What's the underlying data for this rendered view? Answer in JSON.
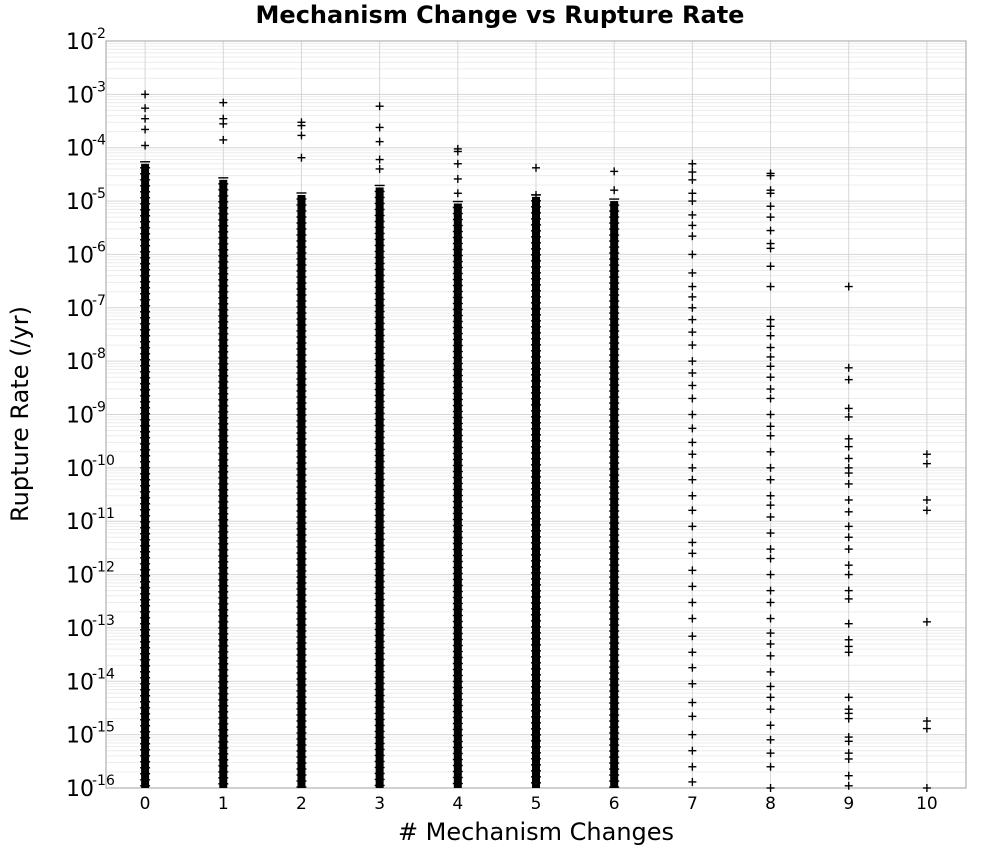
{
  "chart_data": {
    "type": "scatter",
    "title": "Mechanism Change vs Rupture Rate",
    "xlabel": "# Mechanism Changes",
    "ylabel": "Rupture Rate (/yr)",
    "xlim": [
      -0.5,
      10.5
    ],
    "ylim": [
      1e-16,
      0.01
    ],
    "yscale": "log",
    "grid": true,
    "marker": "+",
    "marker_color": "#000000",
    "x_ticks": [
      0,
      1,
      2,
      3,
      4,
      5,
      6,
      7,
      8,
      9,
      10
    ],
    "y_tick_base": "10",
    "y_tick_exponents": [
      "-16",
      "-15",
      "-14",
      "-13",
      "-12",
      "-11",
      "-10",
      "-9",
      "-8",
      "-7",
      "-6",
      "-5",
      "-4",
      "-3",
      "-2"
    ],
    "series": [
      {
        "points": [
          {
            "x": 0,
            "y": 0.001
          },
          {
            "x": 0,
            "y": 0.00055
          },
          {
            "x": 0,
            "y": 0.00035
          },
          {
            "x": 0,
            "y": 0.00022
          },
          {
            "x": 0,
            "y": 0.00011
          },
          {
            "x": 1,
            "y": 0.0007
          },
          {
            "x": 1,
            "y": 0.00035
          },
          {
            "x": 1,
            "y": 0.00028
          },
          {
            "x": 1,
            "y": 0.00014
          },
          {
            "x": 2,
            "y": 0.0003
          },
          {
            "x": 2,
            "y": 0.00026
          },
          {
            "x": 2,
            "y": 0.00017
          },
          {
            "x": 2,
            "y": 6.5e-05
          },
          {
            "x": 3,
            "y": 0.0006
          },
          {
            "x": 3,
            "y": 0.00024
          },
          {
            "x": 3,
            "y": 0.00013
          },
          {
            "x": 3,
            "y": 6e-05
          },
          {
            "x": 3,
            "y": 4e-05
          },
          {
            "x": 4,
            "y": 9.5e-05
          },
          {
            "x": 4,
            "y": 8.5e-05
          },
          {
            "x": 4,
            "y": 5e-05
          },
          {
            "x": 4,
            "y": 2.6e-05
          },
          {
            "x": 4,
            "y": 1.4e-05
          },
          {
            "x": 5,
            "y": 4.2e-05
          },
          {
            "x": 5,
            "y": 1.3e-05
          },
          {
            "x": 6,
            "y": 3.6e-05
          },
          {
            "x": 6,
            "y": 1.6e-05
          },
          {
            "x": 6,
            "y": 8e-06
          },
          {
            "x": 7,
            "y": 5e-05
          },
          {
            "x": 7,
            "y": 3.5e-05
          },
          {
            "x": 7,
            "y": 2.5e-05
          },
          {
            "x": 7,
            "y": 1.4e-05
          },
          {
            "x": 7,
            "y": 1e-05
          },
          {
            "x": 7,
            "y": 5.5e-06
          },
          {
            "x": 7,
            "y": 3.5e-06
          },
          {
            "x": 7,
            "y": 2.2e-06
          },
          {
            "x": 7,
            "y": 1e-06
          },
          {
            "x": 7,
            "y": 4.5e-07
          },
          {
            "x": 7,
            "y": 2.5e-07
          },
          {
            "x": 7,
            "y": 1.6e-07
          },
          {
            "x": 7,
            "y": 1e-07
          },
          {
            "x": 7,
            "y": 6e-08
          },
          {
            "x": 7,
            "y": 3.5e-08
          },
          {
            "x": 7,
            "y": 2e-08
          },
          {
            "x": 7,
            "y": 1e-08
          },
          {
            "x": 7,
            "y": 6e-09
          },
          {
            "x": 7,
            "y": 3.5e-09
          },
          {
            "x": 7,
            "y": 2e-09
          },
          {
            "x": 7,
            "y": 1e-09
          },
          {
            "x": 7,
            "y": 5.5e-10
          },
          {
            "x": 7,
            "y": 3e-10
          },
          {
            "x": 7,
            "y": 1.8e-10
          },
          {
            "x": 7,
            "y": 1e-10
          },
          {
            "x": 7,
            "y": 6e-11
          },
          {
            "x": 7,
            "y": 3e-11
          },
          {
            "x": 7,
            "y": 1.6e-11
          },
          {
            "x": 7,
            "y": 8e-12
          },
          {
            "x": 7,
            "y": 4e-12
          },
          {
            "x": 7,
            "y": 2.5e-12
          },
          {
            "x": 7,
            "y": 1.2e-12
          },
          {
            "x": 7,
            "y": 6e-13
          },
          {
            "x": 7,
            "y": 3e-13
          },
          {
            "x": 7,
            "y": 1.5e-13
          },
          {
            "x": 7,
            "y": 7e-14
          },
          {
            "x": 7,
            "y": 3.5e-14
          },
          {
            "x": 7,
            "y": 1.8e-14
          },
          {
            "x": 7,
            "y": 9e-15
          },
          {
            "x": 7,
            "y": 4e-15
          },
          {
            "x": 7,
            "y": 2.2e-15
          },
          {
            "x": 7,
            "y": 1e-15
          },
          {
            "x": 7,
            "y": 5e-16
          },
          {
            "x": 7,
            "y": 2.5e-16
          },
          {
            "x": 7,
            "y": 1.3e-16
          },
          {
            "x": 8,
            "y": 3.3e-05
          },
          {
            "x": 8,
            "y": 3e-05
          },
          {
            "x": 8,
            "y": 1.6e-05
          },
          {
            "x": 8,
            "y": 1.4e-05
          },
          {
            "x": 8,
            "y": 8e-06
          },
          {
            "x": 8,
            "y": 5e-06
          },
          {
            "x": 8,
            "y": 2.8e-06
          },
          {
            "x": 8,
            "y": 1.6e-06
          },
          {
            "x": 8,
            "y": 1.3e-06
          },
          {
            "x": 8,
            "y": 6e-07
          },
          {
            "x": 8,
            "y": 2.5e-07
          },
          {
            "x": 8,
            "y": 6e-08
          },
          {
            "x": 8,
            "y": 4.5e-08
          },
          {
            "x": 8,
            "y": 3e-08
          },
          {
            "x": 8,
            "y": 1.8e-08
          },
          {
            "x": 8,
            "y": 1.2e-08
          },
          {
            "x": 8,
            "y": 8e-09
          },
          {
            "x": 8,
            "y": 5e-09
          },
          {
            "x": 8,
            "y": 3e-09
          },
          {
            "x": 8,
            "y": 2e-09
          },
          {
            "x": 8,
            "y": 1e-09
          },
          {
            "x": 8,
            "y": 6e-10
          },
          {
            "x": 8,
            "y": 4e-10
          },
          {
            "x": 8,
            "y": 2e-10
          },
          {
            "x": 8,
            "y": 1e-10
          },
          {
            "x": 8,
            "y": 6e-11
          },
          {
            "x": 8,
            "y": 3e-11
          },
          {
            "x": 8,
            "y": 2e-11
          },
          {
            "x": 8,
            "y": 1.2e-11
          },
          {
            "x": 8,
            "y": 6e-12
          },
          {
            "x": 8,
            "y": 3e-12
          },
          {
            "x": 8,
            "y": 2e-12
          },
          {
            "x": 8,
            "y": 1e-12
          },
          {
            "x": 8,
            "y": 5e-13
          },
          {
            "x": 8,
            "y": 3e-13
          },
          {
            "x": 8,
            "y": 1.5e-13
          },
          {
            "x": 8,
            "y": 8e-14
          },
          {
            "x": 8,
            "y": 5e-14
          },
          {
            "x": 8,
            "y": 3e-14
          },
          {
            "x": 8,
            "y": 1.5e-14
          },
          {
            "x": 8,
            "y": 8e-15
          },
          {
            "x": 8,
            "y": 5e-15
          },
          {
            "x": 8,
            "y": 3e-15
          },
          {
            "x": 8,
            "y": 1.5e-15
          },
          {
            "x": 8,
            "y": 8e-16
          },
          {
            "x": 8,
            "y": 4.5e-16
          },
          {
            "x": 8,
            "y": 2.5e-16
          },
          {
            "x": 8,
            "y": 1e-16
          },
          {
            "x": 9,
            "y": 2.5e-07
          },
          {
            "x": 9,
            "y": 7.5e-09
          },
          {
            "x": 9,
            "y": 4.5e-09
          },
          {
            "x": 9,
            "y": 1.3e-09
          },
          {
            "x": 9,
            "y": 9e-10
          },
          {
            "x": 9,
            "y": 3.5e-10
          },
          {
            "x": 9,
            "y": 2.5e-10
          },
          {
            "x": 9,
            "y": 1.5e-10
          },
          {
            "x": 9,
            "y": 1e-10
          },
          {
            "x": 9,
            "y": 8e-11
          },
          {
            "x": 9,
            "y": 5e-11
          },
          {
            "x": 9,
            "y": 2.5e-11
          },
          {
            "x": 9,
            "y": 1.5e-11
          },
          {
            "x": 9,
            "y": 8e-12
          },
          {
            "x": 9,
            "y": 5e-12
          },
          {
            "x": 9,
            "y": 3e-12
          },
          {
            "x": 9,
            "y": 1.5e-12
          },
          {
            "x": 9,
            "y": 1e-12
          },
          {
            "x": 9,
            "y": 5e-13
          },
          {
            "x": 9,
            "y": 3.5e-13
          },
          {
            "x": 9,
            "y": 1.2e-13
          },
          {
            "x": 9,
            "y": 6e-14
          },
          {
            "x": 9,
            "y": 4.5e-14
          },
          {
            "x": 9,
            "y": 3.5e-14
          },
          {
            "x": 9,
            "y": 5e-15
          },
          {
            "x": 9,
            "y": 3e-15
          },
          {
            "x": 9,
            "y": 2.5e-15
          },
          {
            "x": 9,
            "y": 2e-15
          },
          {
            "x": 9,
            "y": 9e-16
          },
          {
            "x": 9,
            "y": 7.5e-16
          },
          {
            "x": 9,
            "y": 4.5e-16
          },
          {
            "x": 9,
            "y": 3.5e-16
          },
          {
            "x": 9,
            "y": 1.7e-16
          },
          {
            "x": 9,
            "y": 1.1e-16
          },
          {
            "x": 10,
            "y": 1.8e-10
          },
          {
            "x": 10,
            "y": 1.2e-10
          },
          {
            "x": 10,
            "y": 2.5e-11
          },
          {
            "x": 10,
            "y": 1.6e-11
          },
          {
            "x": 10,
            "y": 1.3e-13
          },
          {
            "x": 10,
            "y": 1.8e-15
          },
          {
            "x": 10,
            "y": 1.3e-15
          },
          {
            "x": 10,
            "y": 1e-16
          }
        ],
        "dense_ranges": [
          {
            "x": 0,
            "y_min": 1e-16,
            "y_max": 5e-05
          },
          {
            "x": 1,
            "y_min": 1e-16,
            "y_max": 2.5e-05
          },
          {
            "x": 2,
            "y_min": 1e-16,
            "y_max": 1.3e-05
          },
          {
            "x": 3,
            "y_min": 1e-16,
            "y_max": 1.8e-05
          },
          {
            "x": 4,
            "y_min": 1e-16,
            "y_max": 9e-06
          },
          {
            "x": 5,
            "y_min": 1e-16,
            "y_max": 1.2e-05
          },
          {
            "x": 6,
            "y_min": 1e-16,
            "y_max": 1e-05
          }
        ]
      }
    ]
  }
}
